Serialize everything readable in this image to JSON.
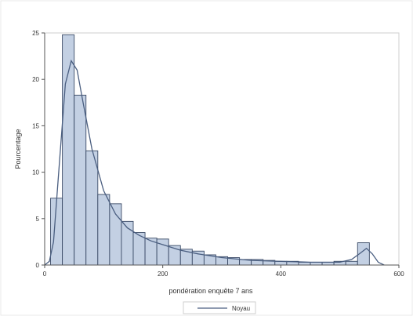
{
  "chart_data": {
    "type": "bar",
    "subtype": "histogram",
    "title": "",
    "xlabel": "pondération enquête 7 ans",
    "ylabel": "Pourcentage",
    "xlim": [
      0,
      600
    ],
    "ylim": [
      0,
      25
    ],
    "x_ticks": [
      0,
      200,
      400,
      600
    ],
    "x_tick_labels": [
      "0",
      "200",
      "400",
      "600"
    ],
    "y_ticks": [
      0,
      5,
      10,
      15,
      20,
      25
    ],
    "y_tick_labels": [
      "0",
      "5",
      "10",
      "15",
      "20",
      "25"
    ],
    "grid": false,
    "legend_position": "bottom",
    "bins": [
      {
        "x0": 10,
        "x1": 30,
        "value": 7.2
      },
      {
        "x0": 30,
        "x1": 50,
        "value": 24.8
      },
      {
        "x0": 50,
        "x1": 70,
        "value": 18.3
      },
      {
        "x0": 70,
        "x1": 90,
        "value": 12.3
      },
      {
        "x0": 90,
        "x1": 110,
        "value": 7.6
      },
      {
        "x0": 110,
        "x1": 130,
        "value": 6.6
      },
      {
        "x0": 130,
        "x1": 150,
        "value": 4.7
      },
      {
        "x0": 150,
        "x1": 170,
        "value": 3.5
      },
      {
        "x0": 170,
        "x1": 190,
        "value": 2.9
      },
      {
        "x0": 190,
        "x1": 210,
        "value": 2.8
      },
      {
        "x0": 210,
        "x1": 230,
        "value": 2.1
      },
      {
        "x0": 230,
        "x1": 250,
        "value": 1.7
      },
      {
        "x0": 250,
        "x1": 270,
        "value": 1.5
      },
      {
        "x0": 270,
        "x1": 290,
        "value": 1.1
      },
      {
        "x0": 290,
        "x1": 310,
        "value": 0.9
      },
      {
        "x0": 310,
        "x1": 330,
        "value": 0.8
      },
      {
        "x0": 330,
        "x1": 350,
        "value": 0.6
      },
      {
        "x0": 350,
        "x1": 370,
        "value": 0.6
      },
      {
        "x0": 370,
        "x1": 390,
        "value": 0.5
      },
      {
        "x0": 390,
        "x1": 410,
        "value": 0.4
      },
      {
        "x0": 410,
        "x1": 430,
        "value": 0.4
      },
      {
        "x0": 430,
        "x1": 450,
        "value": 0.3
      },
      {
        "x0": 450,
        "x1": 470,
        "value": 0.3
      },
      {
        "x0": 470,
        "x1": 490,
        "value": 0.3
      },
      {
        "x0": 490,
        "x1": 510,
        "value": 0.4
      },
      {
        "x0": 510,
        "x1": 530,
        "value": 0.4
      },
      {
        "x0": 530,
        "x1": 550,
        "value": 2.4
      }
    ],
    "series": [
      {
        "name": "Noyau",
        "type": "line",
        "x": [
          0,
          8,
          15,
          25,
          35,
          45,
          55,
          65,
          80,
          100,
          120,
          140,
          160,
          180,
          200,
          230,
          260,
          300,
          350,
          400,
          450,
          500,
          520,
          535,
          545,
          555,
          565,
          575
        ],
        "values": [
          0,
          0.4,
          2.5,
          11,
          19.5,
          22,
          21,
          17.5,
          12.5,
          8,
          5.5,
          4,
          3.2,
          2.6,
          2.2,
          1.6,
          1.2,
          0.8,
          0.5,
          0.4,
          0.3,
          0.3,
          0.6,
          1.3,
          1.8,
          1.2,
          0.3,
          0
        ]
      }
    ],
    "colors": {
      "bar_fill": "#c3d0e3",
      "bar_stroke": "#3a4a66",
      "line": "#4a5e80",
      "axis": "#555555",
      "plot_border": "#cfcfcf"
    }
  },
  "legend": {
    "items": [
      "Noyau"
    ]
  }
}
